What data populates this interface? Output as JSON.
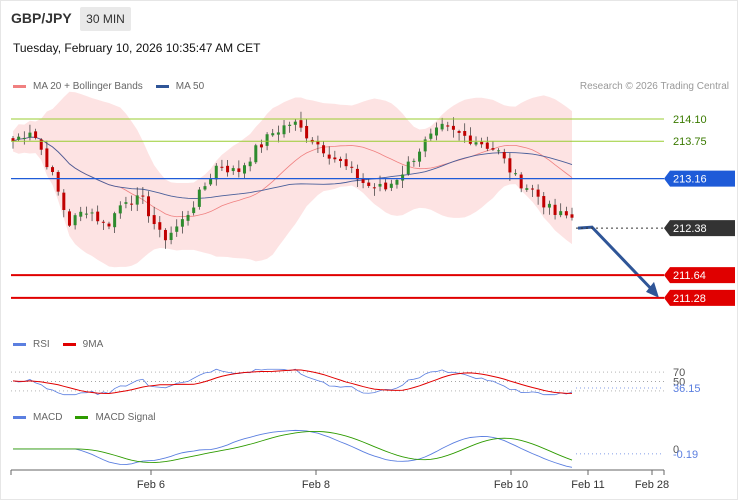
{
  "header": {
    "pair": "GBP/JPY",
    "timeframe": "30 MIN",
    "datetime": "Tuesday, February 10, 2026 10:35:47 AM CET",
    "copyright": "Research © 2026 Trading Central"
  },
  "legends": {
    "price": [
      {
        "label": "MA 20 + Bollinger Bands",
        "color": "#f08080"
      },
      {
        "label": "MA 50",
        "color": "#2f5597"
      }
    ],
    "rsi": [
      {
        "label": "RSI",
        "color": "#5b7fe0"
      },
      {
        "label": "9MA",
        "color": "#e00000"
      }
    ],
    "macd": [
      {
        "label": "MACD",
        "color": "#5b7fe0"
      },
      {
        "label": "MACD Signal",
        "color": "#2e9b00"
      }
    ]
  },
  "chart_data": [
    {
      "type": "candlestick",
      "panel": "price",
      "x_tick_labels": [
        "Feb 6",
        "Feb 8",
        "Feb 10",
        "Feb 11",
        "Feb 28"
      ],
      "y_range": [
        210.9,
        214.4
      ],
      "candles_approx_close": [
        213.75,
        213.95,
        213.3,
        212.45,
        212.7,
        212.4,
        212.85,
        212.8,
        212.2,
        212.45,
        212.9,
        213.4,
        213.25,
        213.6,
        213.9,
        214.05,
        213.8,
        213.55,
        213.3,
        213.05,
        213.0,
        213.3,
        213.7,
        213.95,
        213.85,
        213.75,
        213.6,
        213.15,
        212.95,
        212.6,
        212.55
      ],
      "levels": [
        {
          "value": 214.1,
          "label": "214.10",
          "kind": "target",
          "color": "#9acd32"
        },
        {
          "value": 213.75,
          "label": "213.75",
          "kind": "target",
          "color": "#9acd32"
        },
        {
          "value": 213.16,
          "label": "213.16",
          "kind": "pivot",
          "color": "#1e5bd8"
        },
        {
          "value": 212.38,
          "label": "212.38",
          "kind": "last",
          "color": "#333333"
        },
        {
          "value": 211.64,
          "label": "211.64",
          "kind": "support",
          "color": "#e00000"
        },
        {
          "value": 211.28,
          "label": "211.28",
          "kind": "support",
          "color": "#e00000"
        }
      ],
      "forecast_arrow": {
        "from": 212.38,
        "to": 211.28,
        "color": "#2f5597"
      }
    },
    {
      "type": "line",
      "panel": "rsi",
      "levels": [
        {
          "value": 70,
          "label": "70"
        },
        {
          "value": 50,
          "label": "50"
        },
        {
          "value": 30,
          "label": ""
        }
      ],
      "current": {
        "value": 36.15,
        "label": "36.15"
      },
      "series": [
        {
          "name": "RSI"
        },
        {
          "name": "9MA"
        }
      ]
    },
    {
      "type": "line",
      "panel": "macd",
      "levels": [
        {
          "value": 0,
          "label": "0"
        }
      ],
      "current": {
        "value": -0.19,
        "label": "-0.19"
      },
      "series": [
        {
          "name": "MACD"
        },
        {
          "name": "MACD Signal"
        }
      ]
    }
  ]
}
